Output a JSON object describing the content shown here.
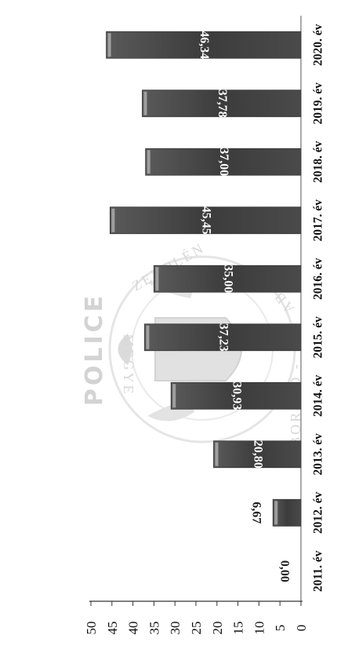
{
  "watermark": {
    "lines": [
      "POLICE",
      "BORSOD -",
      "ZEMPLÉN",
      "ABAÚJ",
      "MEGYE"
    ]
  },
  "chart_data": {
    "type": "bar",
    "orientation": "horizontal",
    "rotated_page": true,
    "categories": [
      "2011. év",
      "2012. év",
      "2013. év",
      "2014. év",
      "2015. év",
      "2016. év",
      "2017. év",
      "2018. év",
      "2019. év",
      "2020. év"
    ],
    "values": [
      0.0,
      6.67,
      20.8,
      30.93,
      37.23,
      35.0,
      45.45,
      37.0,
      37.78,
      46.34
    ],
    "data_labels": [
      "0,00",
      "6,67",
      "20,80",
      "30,93",
      "37,23",
      "35,00",
      "45,45",
      "37,00",
      "37,78",
      "46,34"
    ],
    "value_axis": {
      "ticks": [
        0,
        5,
        10,
        15,
        20,
        25,
        30,
        35,
        40,
        45,
        50
      ],
      "tick_labels": [
        "0",
        "5",
        "10",
        "15",
        "20",
        "25",
        "30",
        "35",
        "40",
        "45",
        "50"
      ],
      "range": [
        0,
        50
      ]
    },
    "bar_color": "#444444",
    "label_dark_color": "#222222",
    "label_light_color": "#ffffff",
    "grid": false,
    "legend": "none"
  }
}
